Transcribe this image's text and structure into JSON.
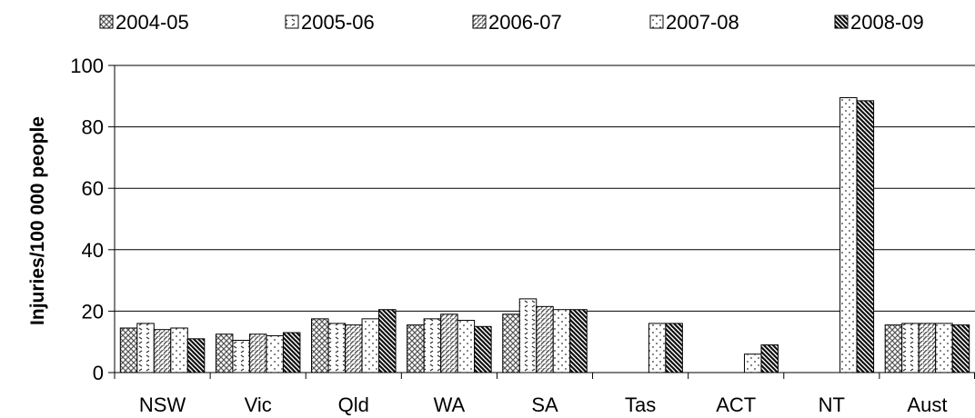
{
  "chart_data": {
    "type": "bar",
    "title": "",
    "xlabel": "",
    "ylabel": "Injuries/100 000 people",
    "ylim": [
      0,
      100
    ],
    "yticks": [
      0,
      20,
      40,
      60,
      80,
      100
    ],
    "grid": true,
    "legend_position": "top",
    "categories": [
      "NSW",
      "Vic",
      "Qld",
      "WA",
      "SA",
      "Tas",
      "ACT",
      "NT",
      "Aust"
    ],
    "series": [
      {
        "name": "2004-05",
        "pattern": "crosshatch",
        "values": [
          14.5,
          12.5,
          17.5,
          15.5,
          19,
          null,
          null,
          null,
          15.5
        ]
      },
      {
        "name": "2005-06",
        "pattern": "zigzag-dots",
        "values": [
          16,
          10.5,
          16,
          17.5,
          24,
          null,
          null,
          null,
          16
        ]
      },
      {
        "name": "2006-07",
        "pattern": "diagonal-light",
        "values": [
          14,
          12.5,
          15.5,
          19,
          21.5,
          null,
          null,
          null,
          16
        ]
      },
      {
        "name": "2007-08",
        "pattern": "dots",
        "values": [
          14.5,
          12,
          17.5,
          17,
          20.5,
          16,
          6,
          89.5,
          16
        ]
      },
      {
        "name": "2008-09",
        "pattern": "diagonal-dark",
        "values": [
          11,
          13,
          20.5,
          15,
          20.5,
          16,
          9,
          88.5,
          15.5
        ]
      }
    ]
  }
}
